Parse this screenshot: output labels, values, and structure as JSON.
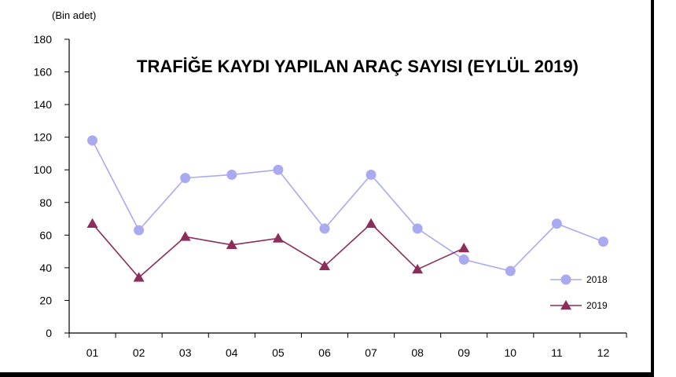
{
  "chart_data": {
    "type": "line",
    "title": "TRAFİĞE KAYDI YAPILAN ARAÇ SAYISI (EYLÜL 2019)",
    "unit_label": "(Bin adet)",
    "xlabel": "",
    "ylabel": "",
    "categories": [
      "01",
      "02",
      "03",
      "04",
      "05",
      "06",
      "07",
      "08",
      "09",
      "10",
      "11",
      "12"
    ],
    "ylim": [
      0,
      180
    ],
    "yticks": [
      "0",
      "20",
      "40",
      "60",
      "80",
      "100",
      "120",
      "140",
      "160",
      "180"
    ],
    "grid": false,
    "legend_position": "right",
    "series": [
      {
        "name": "2018",
        "color": "#aaaaf0",
        "marker": "circle",
        "values": [
          118,
          63,
          95,
          97,
          100,
          64,
          97,
          64,
          45,
          38,
          67,
          56
        ]
      },
      {
        "name": "2019",
        "color": "#8c2d5a",
        "marker": "triangle",
        "values": [
          67,
          34,
          59,
          54,
          58,
          41,
          67,
          39,
          52,
          null,
          null,
          null
        ]
      }
    ]
  }
}
